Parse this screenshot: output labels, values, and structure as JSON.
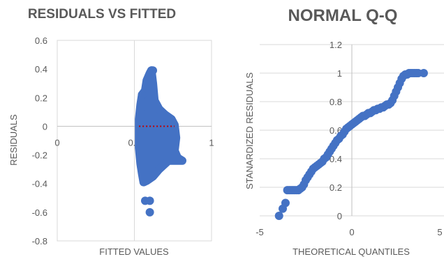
{
  "chart_data": [
    {
      "type": "scatter",
      "title": "RESIDUALS VS FITTED",
      "xlabel": "FITTED VALUES",
      "ylabel": "RESIDUALS",
      "xlim": [
        0,
        1
      ],
      "ylim": [
        -0.8,
        0.6
      ],
      "x_ticks": [
        "0",
        "0.5",
        "1"
      ],
      "y_ticks": [
        "0.6",
        "0.4",
        "0.2",
        "0",
        "-0.2",
        "-0.4",
        "-0.6",
        "-0.8"
      ],
      "grid": "vertical",
      "marker_color": "#4472c4",
      "reference_line": {
        "y": 0,
        "x_range": [
          0.53,
          0.76
        ],
        "color": "#c00000",
        "style": "dotted"
      },
      "points_outline": [
        [
          0.55,
          0.22
        ],
        [
          0.57,
          0.25
        ],
        [
          0.58,
          0.32
        ],
        [
          0.6,
          0.37
        ],
        [
          0.61,
          0.39
        ],
        [
          0.62,
          0.3
        ],
        [
          0.63,
          0.18
        ],
        [
          0.66,
          0.12
        ],
        [
          0.7,
          0.08
        ],
        [
          0.74,
          0.05
        ],
        [
          0.76,
          0.01
        ],
        [
          0.77,
          -0.08
        ],
        [
          0.76,
          -0.17
        ],
        [
          0.78,
          -0.22
        ],
        [
          0.81,
          -0.24
        ],
        [
          0.72,
          -0.24
        ],
        [
          0.66,
          -0.3
        ],
        [
          0.62,
          -0.35
        ],
        [
          0.58,
          -0.38
        ],
        [
          0.56,
          -0.39
        ],
        [
          0.55,
          -0.33
        ],
        [
          0.54,
          -0.26
        ],
        [
          0.53,
          -0.15
        ],
        [
          0.53,
          0.05
        ],
        [
          0.54,
          0.15
        ]
      ],
      "outliers": [
        [
          0.57,
          -0.52
        ],
        [
          0.6,
          -0.52
        ],
        [
          0.6,
          -0.6
        ],
        [
          0.62,
          0.39
        ],
        [
          0.55,
          0.22
        ]
      ]
    },
    {
      "type": "scatter",
      "title": "NORMAL Q-Q",
      "xlabel": "THEORETICAL QUANTILES",
      "ylabel": "STANARDIZED RESIDUALS",
      "xlim": [
        -5,
        5
      ],
      "ylim": [
        0,
        1.2
      ],
      "x_ticks": [
        "-5",
        "0",
        "5"
      ],
      "y_ticks": [
        "1.2",
        "1",
        "0.8",
        "0.6",
        "0.4",
        "0.2",
        "0"
      ],
      "grid": "horizontal",
      "marker_color": "#4472c4",
      "points": [
        [
          -3.95,
          0.0
        ],
        [
          -3.75,
          0.05
        ],
        [
          -3.6,
          0.09
        ],
        [
          -3.5,
          0.18
        ],
        [
          -3.4,
          0.18
        ],
        [
          -3.3,
          0.18
        ],
        [
          -3.2,
          0.18
        ],
        [
          -3.1,
          0.18
        ],
        [
          -3.0,
          0.18
        ],
        [
          -2.9,
          0.18
        ],
        [
          -2.8,
          0.19
        ],
        [
          -2.7,
          0.2
        ],
        [
          -2.6,
          0.22
        ],
        [
          -2.5,
          0.25
        ],
        [
          -2.4,
          0.27
        ],
        [
          -2.3,
          0.29
        ],
        [
          -2.2,
          0.31
        ],
        [
          -2.1,
          0.33
        ],
        [
          -2.0,
          0.34
        ],
        [
          -1.9,
          0.35
        ],
        [
          -1.8,
          0.36
        ],
        [
          -1.7,
          0.37
        ],
        [
          -1.6,
          0.38
        ],
        [
          -1.5,
          0.4
        ],
        [
          -1.4,
          0.41
        ],
        [
          -1.3,
          0.43
        ],
        [
          -1.2,
          0.45
        ],
        [
          -1.1,
          0.47
        ],
        [
          -1.0,
          0.49
        ],
        [
          -0.9,
          0.51
        ],
        [
          -0.8,
          0.53
        ],
        [
          -0.7,
          0.54
        ],
        [
          -0.6,
          0.56
        ],
        [
          -0.5,
          0.57
        ],
        [
          -0.4,
          0.59
        ],
        [
          -0.3,
          0.61
        ],
        [
          -0.2,
          0.62
        ],
        [
          -0.1,
          0.63
        ],
        [
          0.0,
          0.64
        ],
        [
          0.1,
          0.65
        ],
        [
          0.2,
          0.66
        ],
        [
          0.3,
          0.67
        ],
        [
          0.4,
          0.68
        ],
        [
          0.5,
          0.69
        ],
        [
          0.6,
          0.7
        ],
        [
          0.7,
          0.7
        ],
        [
          0.8,
          0.71
        ],
        [
          0.9,
          0.72
        ],
        [
          1.0,
          0.72
        ],
        [
          1.1,
          0.73
        ],
        [
          1.2,
          0.74
        ],
        [
          1.3,
          0.74
        ],
        [
          1.4,
          0.75
        ],
        [
          1.5,
          0.75
        ],
        [
          1.6,
          0.76
        ],
        [
          1.7,
          0.76
        ],
        [
          1.8,
          0.77
        ],
        [
          1.9,
          0.78
        ],
        [
          2.0,
          0.78
        ],
        [
          2.1,
          0.79
        ],
        [
          2.2,
          0.81
        ],
        [
          2.3,
          0.84
        ],
        [
          2.4,
          0.87
        ],
        [
          2.5,
          0.9
        ],
        [
          2.6,
          0.93
        ],
        [
          2.7,
          0.96
        ],
        [
          2.8,
          0.98
        ],
        [
          2.9,
          0.99
        ],
        [
          3.0,
          0.99
        ],
        [
          3.1,
          1.0
        ],
        [
          3.2,
          1.0
        ],
        [
          3.3,
          1.0
        ],
        [
          3.4,
          1.0
        ],
        [
          3.5,
          1.0
        ],
        [
          3.6,
          1.0
        ],
        [
          3.9,
          1.0
        ]
      ]
    }
  ]
}
